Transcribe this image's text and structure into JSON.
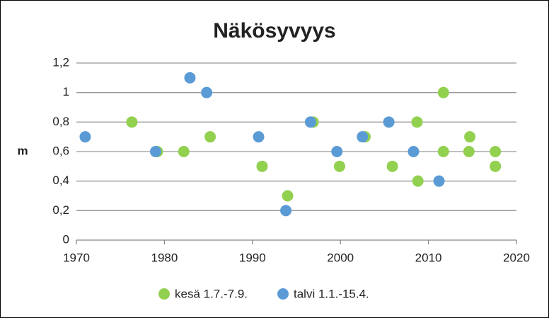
{
  "chart_data": {
    "type": "scatter",
    "title": "Näkösyvyys",
    "y_label": "m",
    "xlim": [
      1970,
      2020
    ],
    "xticks": [
      1970,
      1980,
      1990,
      2000,
      2010,
      2020
    ],
    "ylim": [
      0,
      1.2
    ],
    "yticks": [
      0,
      {
        "value": 0.2,
        "label": "0,2"
      },
      {
        "value": 0.4,
        "label": "0,4"
      },
      {
        "value": 0.6,
        "label": "0,6"
      },
      {
        "value": 0.8,
        "label": "0,8"
      },
      1,
      {
        "value": 1.2,
        "label": "1,2"
      }
    ],
    "grid": true,
    "legend": "bottom",
    "series": [
      {
        "name": "kesä 1.7.-7.9.",
        "color": "#92d050",
        "x": [
          1976.3,
          1979.2,
          1982.2,
          1985.2,
          1991.1,
          1994.0,
          1996.9,
          1999.9,
          2002.8,
          2005.9,
          2008.7,
          2008.8,
          2011.7,
          2011.7,
          2014.7,
          2014.6,
          2017.6,
          2017.6
        ],
        "values": [
          0.8,
          0.6,
          0.6,
          0.7,
          0.5,
          0.3,
          0.8,
          0.5,
          0.7,
          0.5,
          0.8,
          0.4,
          1.0,
          0.6,
          0.7,
          0.6,
          0.6,
          0.5
        ]
      },
      {
        "name": "talvi 1.1.-15.4.",
        "color": "#5b9bd5",
        "x": [
          1971.0,
          1979.0,
          1982.9,
          1984.8,
          1990.7,
          1993.8,
          1996.6,
          1999.6,
          2002.5,
          2005.5,
          2008.3,
          2011.2
        ],
        "values": [
          0.7,
          0.6,
          1.1,
          1.0,
          0.7,
          0.2,
          0.8,
          0.6,
          0.7,
          0.8,
          0.6,
          0.4
        ]
      }
    ]
  }
}
